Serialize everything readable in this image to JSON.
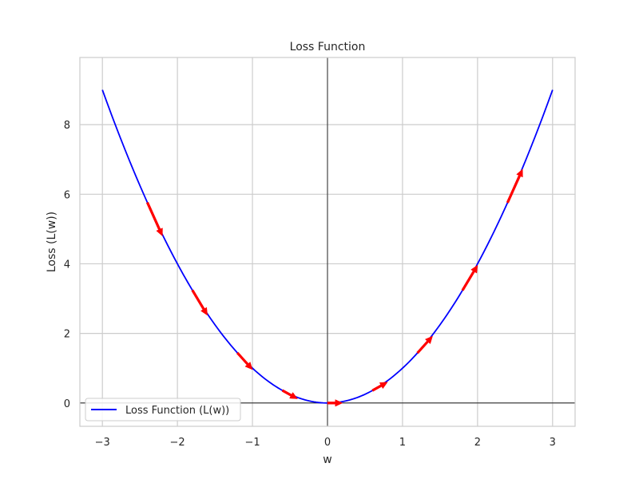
{
  "chart_data": {
    "type": "line",
    "title": "Loss Function",
    "xlabel": "w",
    "ylabel": "Loss (L(w))",
    "xlim": [
      -3.3,
      3.3
    ],
    "ylim": [
      -0.67,
      9.93
    ],
    "x_ticks": [
      -3,
      -2,
      -1,
      0,
      1,
      2,
      3
    ],
    "x_tick_labels": [
      "−3",
      "−2",
      "−1",
      "0",
      "1",
      "2",
      "3"
    ],
    "y_ticks": [
      0,
      2,
      4,
      6,
      8
    ],
    "y_tick_labels": [
      "0",
      "2",
      "4",
      "6",
      "8"
    ],
    "grid": true,
    "zero_lines": true,
    "legend_position": "lower-left",
    "series": [
      {
        "name": "Loss Function (L(w))",
        "color": "#0000ff",
        "function": "w^2",
        "x_range": [
          -3,
          3
        ]
      }
    ],
    "gradient_arrows": {
      "color": "#ff0000",
      "points": [
        {
          "w": -2.4,
          "dw": 0.2,
          "dL": -0.96
        },
        {
          "w": -1.8,
          "dw": 0.2,
          "dL": -0.72
        },
        {
          "w": -1.2,
          "dw": 0.2,
          "dL": -0.48
        },
        {
          "w": -0.6,
          "dw": 0.2,
          "dL": -0.24
        },
        {
          "w": 0.0,
          "dw": 0.2,
          "dL": 0.0
        },
        {
          "w": 0.6,
          "dw": 0.2,
          "dL": 0.24
        },
        {
          "w": 1.2,
          "dw": 0.2,
          "dL": 0.48
        },
        {
          "w": 1.8,
          "dw": 0.2,
          "dL": 0.72
        },
        {
          "w": 2.4,
          "dw": 0.2,
          "dL": 0.96
        }
      ]
    }
  }
}
